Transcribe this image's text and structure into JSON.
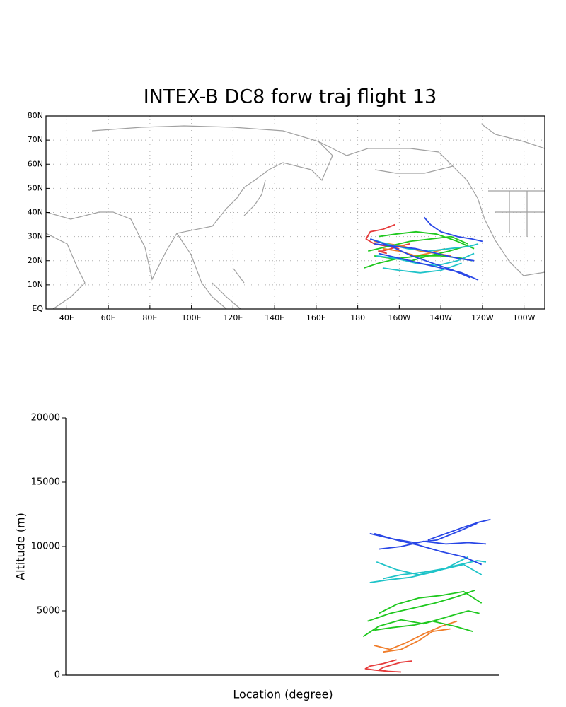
{
  "chart_data": [
    {
      "type": "map",
      "title": "INTEX-B DC8 forw traj flight 13",
      "xlim": [
        30,
        270
      ],
      "ylim": [
        0,
        80
      ],
      "xticks": [
        {
          "value": 40,
          "label": "40E"
        },
        {
          "value": 60,
          "label": "60E"
        },
        {
          "value": 80,
          "label": "80E"
        },
        {
          "value": 100,
          "label": "100E"
        },
        {
          "value": 120,
          "label": "120E"
        },
        {
          "value": 140,
          "label": "140E"
        },
        {
          "value": 160,
          "label": "160E"
        },
        180,
        {
          "value": 200,
          "label": "160W"
        },
        {
          "value": 220,
          "label": "140W"
        },
        {
          "value": 240,
          "label": "120W"
        },
        {
          "value": 260,
          "label": "100W"
        }
      ],
      "yticks": [
        {
          "value": 0,
          "label": "EQ"
        },
        {
          "value": 10,
          "label": "10N"
        },
        {
          "value": 20,
          "label": "20N"
        },
        {
          "value": 30,
          "label": "30N"
        },
        {
          "value": 40,
          "label": "40N"
        },
        {
          "value": 50,
          "label": "50N"
        },
        {
          "value": 60,
          "label": "60N"
        },
        {
          "value": 70,
          "label": "70N"
        },
        {
          "value": 80,
          "label": "80N"
        }
      ],
      "grid": true,
      "series": [
        {
          "color": "#e63c3c",
          "x": [
            198,
            192,
            186,
            184,
            188,
            194,
            200
          ],
          "values": [
            35,
            33,
            32,
            29,
            27,
            26,
            25
          ]
        },
        {
          "color": "#e63c3c",
          "x": [
            205,
            200,
            196,
            192,
            190,
            194
          ],
          "values": [
            27,
            26,
            25,
            24,
            24,
            23
          ]
        },
        {
          "color": "#f07d2a",
          "x": [
            188,
            195,
            202,
            210,
            218,
            225
          ],
          "values": [
            28,
            27,
            26,
            24,
            23,
            22
          ]
        },
        {
          "color": "#f07d2a",
          "x": [
            192,
            200,
            208,
            214,
            222
          ],
          "values": [
            25,
            24,
            22,
            23,
            25
          ]
        },
        {
          "color": "#1ec81e",
          "x": [
            183,
            190,
            200,
            210,
            220,
            230,
            235
          ],
          "values": [
            17,
            19,
            21,
            22,
            22,
            21,
            20
          ]
        },
        {
          "color": "#1ec81e",
          "x": [
            185,
            195,
            205,
            215,
            225,
            233
          ],
          "values": [
            24,
            26,
            28,
            29,
            30,
            27
          ]
        },
        {
          "color": "#1ec81e",
          "x": [
            190,
            198,
            208,
            218,
            228,
            236
          ],
          "values": [
            30,
            31,
            32,
            31,
            28,
            25
          ]
        },
        {
          "color": "#1ec81e",
          "x": [
            188,
            196,
            206,
            214,
            224,
            232
          ],
          "values": [
            22,
            21,
            20,
            22,
            24,
            26
          ]
        },
        {
          "color": "#1ec3c8",
          "x": [
            186,
            194,
            204,
            214,
            224,
            234,
            238
          ],
          "values": [
            29,
            27,
            25,
            24,
            25,
            26,
            27
          ]
        },
        {
          "color": "#1ec3c8",
          "x": [
            189,
            198,
            208,
            218,
            228,
            236
          ],
          "values": [
            22,
            21,
            19,
            18,
            20,
            23
          ]
        },
        {
          "color": "#1ec3c8",
          "x": [
            192,
            200,
            210,
            220,
            230
          ],
          "values": [
            17,
            16,
            15,
            16,
            19
          ]
        },
        {
          "color": "#2846e6",
          "x": [
            186,
            196,
            206,
            216,
            226,
            234
          ],
          "values": [
            29,
            26,
            22,
            19,
            16,
            13
          ]
        },
        {
          "color": "#2846e6",
          "x": [
            190,
            200,
            210,
            220,
            230,
            238
          ],
          "values": [
            23,
            21,
            19,
            17,
            15,
            12
          ]
        },
        {
          "color": "#2846e6",
          "x": [
            212,
            215,
            220,
            228,
            235,
            240
          ],
          "values": [
            38,
            35,
            32,
            30,
            29,
            28
          ]
        },
        {
          "color": "#2846e6",
          "x": [
            188,
            198,
            208,
            218,
            228,
            236
          ],
          "values": [
            27,
            26,
            25,
            23,
            21,
            20
          ]
        }
      ]
    },
    {
      "type": "line",
      "x_label": "Location (degree)",
      "y_label": "Altitude (m)",
      "xlim": [
        50,
        244
      ],
      "ylim": [
        0,
        20000
      ],
      "yticks": [
        0,
        5000,
        10000,
        15000,
        20000
      ],
      "series": [
        {
          "color": "#e63c3c",
          "x": [
            198,
            192,
            186,
            184,
            188,
            194,
            200
          ],
          "values": [
            1200,
            900,
            700,
            500,
            400,
            300,
            250
          ]
        },
        {
          "color": "#e63c3c",
          "x": [
            205,
            200,
            196,
            192,
            190,
            194
          ],
          "values": [
            1100,
            1000,
            800,
            600,
            400,
            300
          ]
        },
        {
          "color": "#f07d2a",
          "x": [
            188,
            195,
            202,
            210,
            218,
            225
          ],
          "values": [
            2300,
            2000,
            2500,
            3200,
            3800,
            4200
          ]
        },
        {
          "color": "#f07d2a",
          "x": [
            192,
            200,
            208,
            214,
            222
          ],
          "values": [
            1800,
            2000,
            2700,
            3400,
            3600
          ]
        },
        {
          "color": "#1ec81e",
          "x": [
            183,
            190,
            200,
            210,
            220,
            230,
            235
          ],
          "values": [
            3000,
            3800,
            4300,
            4000,
            4500,
            5000,
            4800
          ]
        },
        {
          "color": "#1ec81e",
          "x": [
            185,
            195,
            205,
            215,
            225,
            233
          ],
          "values": [
            4200,
            4800,
            5200,
            5600,
            6100,
            6600
          ]
        },
        {
          "color": "#1ec81e",
          "x": [
            190,
            198,
            208,
            218,
            228,
            236
          ],
          "values": [
            4800,
            5500,
            6000,
            6200,
            6500,
            5600
          ]
        },
        {
          "color": "#1ec81e",
          "x": [
            188,
            196,
            206,
            214,
            224,
            232
          ],
          "values": [
            3500,
            3700,
            3900,
            4200,
            3800,
            3400
          ]
        },
        {
          "color": "#1ec3c8",
          "x": [
            186,
            194,
            204,
            214,
            224,
            234,
            238
          ],
          "values": [
            7200,
            7400,
            7600,
            8000,
            8500,
            8900,
            8800
          ]
        },
        {
          "color": "#1ec3c8",
          "x": [
            189,
            198,
            208,
            218,
            228,
            236
          ],
          "values": [
            8800,
            8200,
            7800,
            8200,
            8600,
            7800
          ]
        },
        {
          "color": "#1ec3c8",
          "x": [
            192,
            200,
            210,
            220,
            230
          ],
          "values": [
            7500,
            7800,
            8000,
            8300,
            9200
          ]
        },
        {
          "color": "#2846e6",
          "x": [
            186,
            196,
            206,
            216,
            226,
            234
          ],
          "values": [
            11000,
            10600,
            10300,
            10500,
            11200,
            11800
          ]
        },
        {
          "color": "#2846e6",
          "x": [
            190,
            200,
            210,
            220,
            230,
            238
          ],
          "values": [
            9800,
            10000,
            10400,
            10200,
            10300,
            10200
          ]
        },
        {
          "color": "#2846e6",
          "x": [
            212,
            215,
            220,
            228,
            235,
            240
          ],
          "values": [
            10500,
            10700,
            11000,
            11500,
            11900,
            12100
          ]
        },
        {
          "color": "#2846e6",
          "x": [
            188,
            198,
            208,
            218,
            228,
            236
          ],
          "values": [
            11000,
            10500,
            10100,
            9600,
            9200,
            8600
          ]
        }
      ]
    }
  ]
}
